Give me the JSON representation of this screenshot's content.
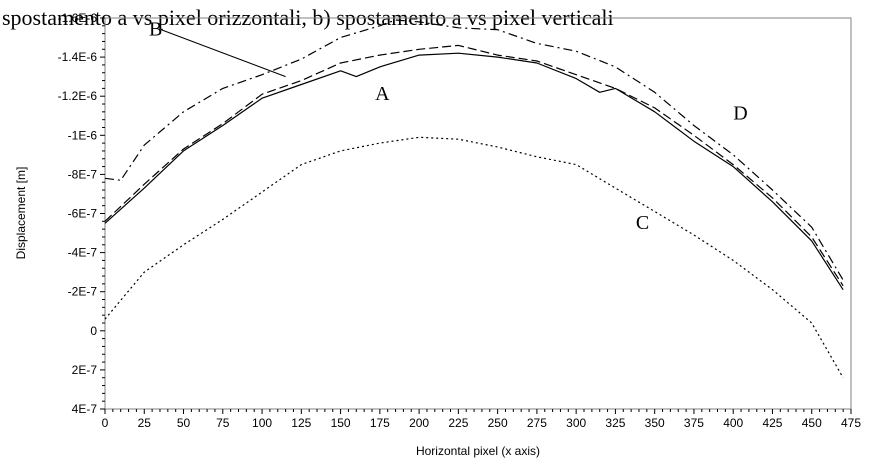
{
  "top_caption": "spostamento a vs pixel orizzontali, b) spostamento a vs pixel verticali",
  "chart_data": {
    "type": "line",
    "title": "",
    "xlabel": "Horizontal pixel (x axis)",
    "ylabel": "Displacement [m]",
    "xlim": [
      0,
      475
    ],
    "ylim": [
      4e-07,
      -1.6e-06
    ],
    "y_axis_inverted": true,
    "x_ticks": [
      "0",
      "25",
      "50",
      "75",
      "100",
      "125",
      "150",
      "175",
      "200",
      "225",
      "250",
      "275",
      "300",
      "325",
      "350",
      "375",
      "400",
      "425",
      "450",
      "475"
    ],
    "y_ticks": [
      {
        "value": -1.6e-06,
        "label": "-1.6E-6"
      },
      {
        "value": -1.4e-06,
        "label": "-1.4E-6"
      },
      {
        "value": -1.2e-06,
        "label": "-1.2E-6"
      },
      {
        "value": -1e-06,
        "label": "-1E-6"
      },
      {
        "value": -8e-07,
        "label": "-8E-7"
      },
      {
        "value": -6e-07,
        "label": "-6E-7"
      },
      {
        "value": -4e-07,
        "label": "-4E-7"
      },
      {
        "value": -2e-07,
        "label": "-2E-7"
      },
      {
        "value": 0,
        "label": "0"
      },
      {
        "value": 2e-07,
        "label": "2E-7"
      },
      {
        "value": 4e-07,
        "label": "4E-7"
      }
    ],
    "grid": false,
    "series": [
      {
        "name": "A",
        "style": "solid",
        "x": [
          0,
          25,
          50,
          75,
          100,
          125,
          150,
          160,
          175,
          200,
          225,
          250,
          275,
          300,
          315,
          325,
          350,
          375,
          400,
          425,
          450,
          470
        ],
        "y": [
          -5.5e-07,
          -7.3e-07,
          -9.2e-07,
          -1.05e-06,
          -1.19e-06,
          -1.26e-06,
          -1.33e-06,
          -1.3e-06,
          -1.35e-06,
          -1.41e-06,
          -1.42e-06,
          -1.4e-06,
          -1.37e-06,
          -1.29e-06,
          -1.22e-06,
          -1.24e-06,
          -1.12e-06,
          -9.7e-07,
          -8.4e-07,
          -6.6e-07,
          -4.6e-07,
          -2.1e-07
        ]
      },
      {
        "name": "B",
        "style": "dashdot",
        "x": [
          0,
          10,
          25,
          50,
          75,
          100,
          125,
          150,
          175,
          185,
          200,
          225,
          250,
          275,
          300,
          325,
          350,
          375,
          400,
          425,
          450,
          470
        ],
        "y": [
          -7.8e-07,
          -7.7e-07,
          -9.5e-07,
          -1.12e-06,
          -1.24e-06,
          -1.31e-06,
          -1.39e-06,
          -1.5e-06,
          -1.56e-06,
          -1.59e-06,
          -1.58e-06,
          -1.55e-06,
          -1.54e-06,
          -1.47e-06,
          -1.43e-06,
          -1.35e-06,
          -1.22e-06,
          -1.05e-06,
          -9e-07,
          -7.2e-07,
          -5.3e-07,
          -2.6e-07
        ]
      },
      {
        "name": "C",
        "style": "dotted",
        "x": [
          0,
          25,
          50,
          75,
          100,
          125,
          150,
          175,
          200,
          225,
          250,
          275,
          300,
          325,
          350,
          375,
          400,
          425,
          450,
          470
        ],
        "y": [
          -6e-08,
          -3e-07,
          -4.4e-07,
          -5.7e-07,
          -7.1e-07,
          -8.5e-07,
          -9.2e-07,
          -9.6e-07,
          -9.9e-07,
          -9.8e-07,
          -9.4e-07,
          -8.9e-07,
          -8.5e-07,
          -7.3e-07,
          -6.1e-07,
          -4.9e-07,
          -3.6e-07,
          -2.1e-07,
          -4e-08,
          2.4e-07
        ]
      },
      {
        "name": "D",
        "style": "dashed",
        "x": [
          0,
          25,
          50,
          75,
          100,
          125,
          150,
          175,
          200,
          225,
          250,
          275,
          300,
          325,
          350,
          375,
          400,
          425,
          450,
          470
        ],
        "y": [
          -5.6e-07,
          -7.5e-07,
          -9.3e-07,
          -1.06e-06,
          -1.21e-06,
          -1.28e-06,
          -1.37e-06,
          -1.41e-06,
          -1.44e-06,
          -1.46e-06,
          -1.41e-06,
          -1.38e-06,
          -1.31e-06,
          -1.24e-06,
          -1.14e-06,
          -1e-06,
          -8.5e-07,
          -6.8e-07,
          -4.8e-07,
          -2.3e-07
        ]
      }
    ],
    "annotations": [
      {
        "text": "A",
        "x": 172,
        "y": -1.18e-06
      },
      {
        "text": "B",
        "x": 28,
        "y": -1.51e-06,
        "leader_to": {
          "x": 115,
          "y": -1.3e-06
        }
      },
      {
        "text": "C",
        "x": 338,
        "y": -5.2e-07
      },
      {
        "text": "D",
        "x": 400,
        "y": -1.08e-06
      }
    ]
  }
}
